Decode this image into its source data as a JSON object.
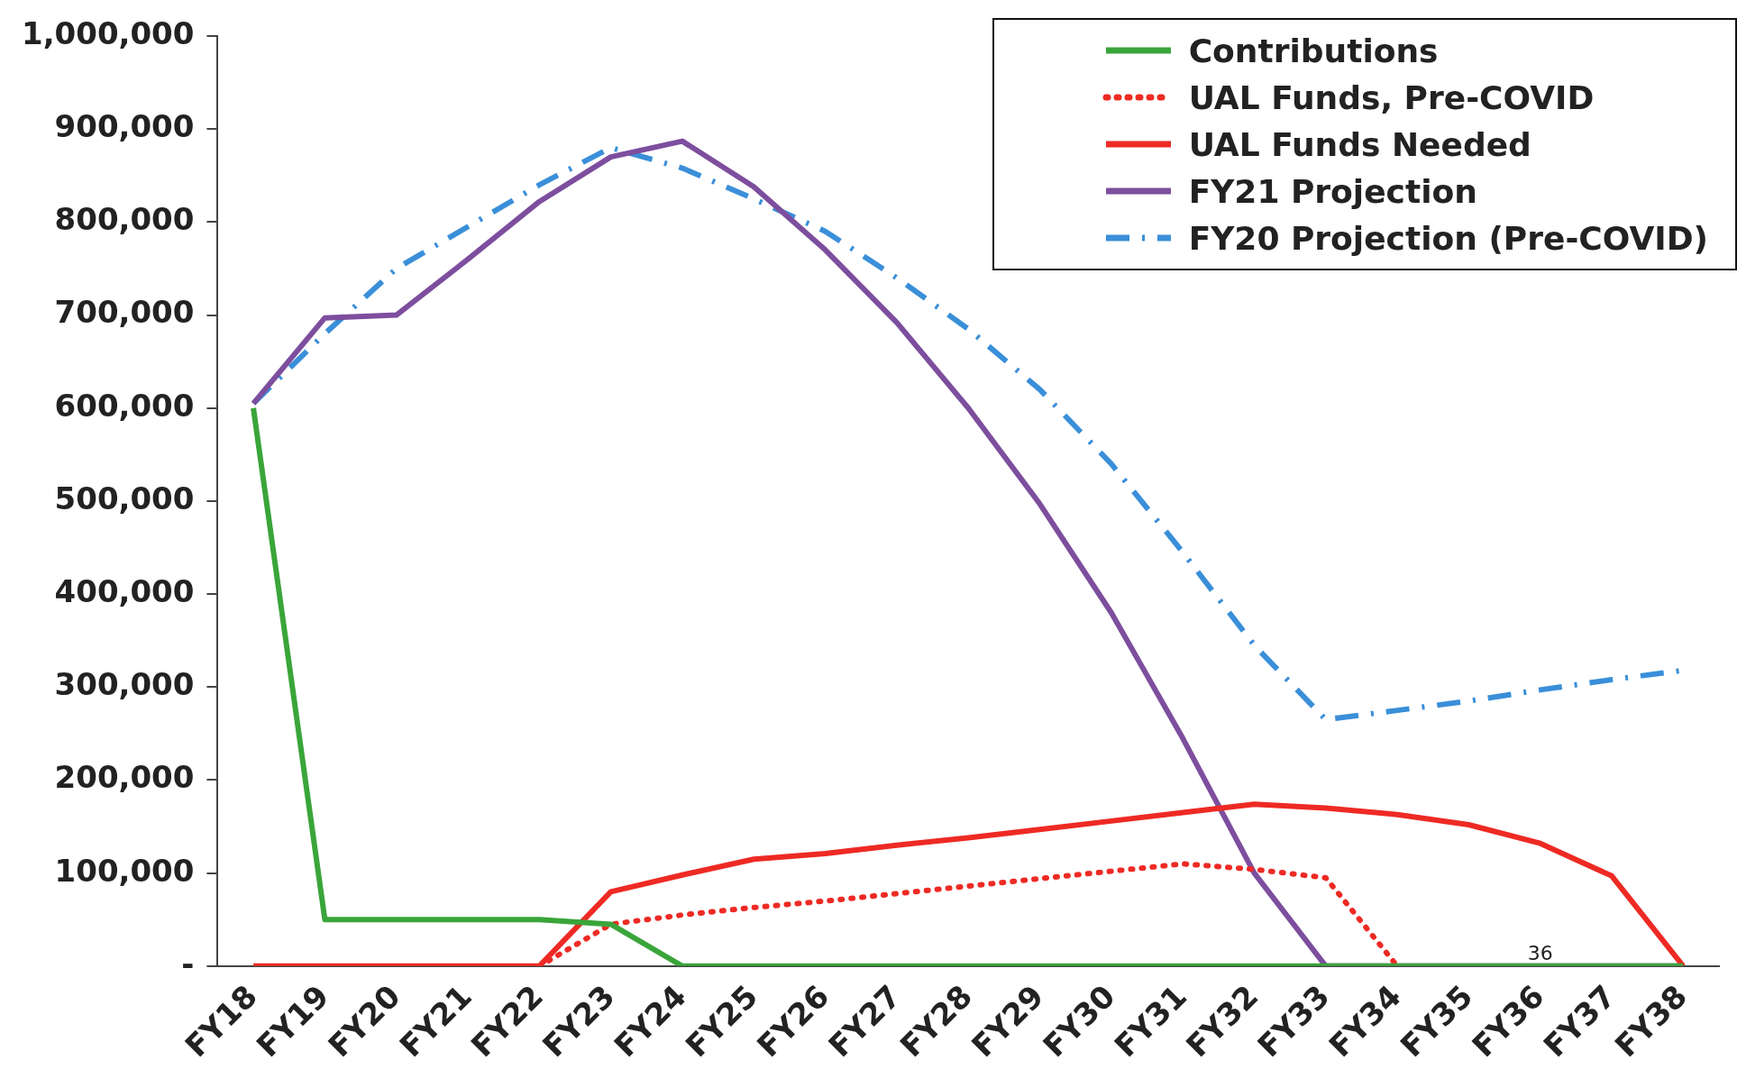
{
  "chart_data": {
    "type": "line",
    "categories": [
      "FY18",
      "FY19",
      "FY20",
      "FY21",
      "FY22",
      "FY23",
      "FY24",
      "FY25",
      "FY26",
      "FY27",
      "FY28",
      "FY29",
      "FY30",
      "FY31",
      "FY32",
      "FY33",
      "FY34",
      "FY35",
      "FY36",
      "FY37",
      "FY38"
    ],
    "series": [
      {
        "name": "Contributions",
        "color": "#3aa53a",
        "line_style": "solid",
        "values": [
          600000,
          50000,
          50000,
          50000,
          50000,
          45000,
          0,
          0,
          0,
          0,
          0,
          0,
          0,
          0,
          0,
          0,
          0,
          0,
          0,
          0,
          0
        ]
      },
      {
        "name": "UAL Funds, Pre-COVID",
        "color": "#ee2a24",
        "line_style": "dotted",
        "values": [
          null,
          null,
          null,
          null,
          0,
          45000,
          55000,
          63000,
          70000,
          78000,
          86000,
          94000,
          102000,
          110000,
          104000,
          95000,
          0,
          null,
          null,
          null,
          null
        ]
      },
      {
        "name": "UAL Funds Needed",
        "color": "#ee2a24",
        "line_style": "solid",
        "values": [
          0,
          0,
          0,
          0,
          0,
          80000,
          98000,
          115000,
          121000,
          130000,
          138000,
          147000,
          156000,
          165000,
          174000,
          170000,
          163000,
          152000,
          132000,
          97000,
          0
        ]
      },
      {
        "name": "FY21 Projection",
        "color": "#7d4e9e",
        "line_style": "solid",
        "values": [
          605000,
          697000,
          700000,
          760000,
          822000,
          870000,
          887000,
          838000,
          770000,
          692000,
          600000,
          497000,
          380000,
          245000,
          100000,
          0,
          0,
          0,
          0,
          0,
          0
        ]
      },
      {
        "name": "FY20 Projection (Pre-COVID)",
        "color": "#3a8fd9",
        "line_style": "dashdot",
        "values": [
          605000,
          680000,
          750000,
          795000,
          840000,
          880000,
          858000,
          825000,
          790000,
          740000,
          685000,
          620000,
          540000,
          445000,
          345000,
          265000,
          275000,
          285000,
          297000,
          308000,
          318000
        ]
      }
    ],
    "ylim": [
      0,
      1000000
    ],
    "yticks": [
      {
        "value": 0,
        "label": "-"
      },
      {
        "value": 100000,
        "label": "100,000"
      },
      {
        "value": 200000,
        "label": "200,000"
      },
      {
        "value": 300000,
        "label": "300,000"
      },
      {
        "value": 400000,
        "label": "400,000"
      },
      {
        "value": 500000,
        "label": "500,000"
      },
      {
        "value": 600000,
        "label": "600,000"
      },
      {
        "value": 700000,
        "label": "700,000"
      },
      {
        "value": 800000,
        "label": "800,000"
      },
      {
        "value": 900000,
        "label": "900,000"
      },
      {
        "value": 1000000,
        "label": "1,000,000"
      }
    ],
    "grid": false,
    "legend": "top right",
    "marker": "none",
    "annotations": [
      {
        "text": "36",
        "x": "FY36",
        "y": 0
      }
    ]
  }
}
